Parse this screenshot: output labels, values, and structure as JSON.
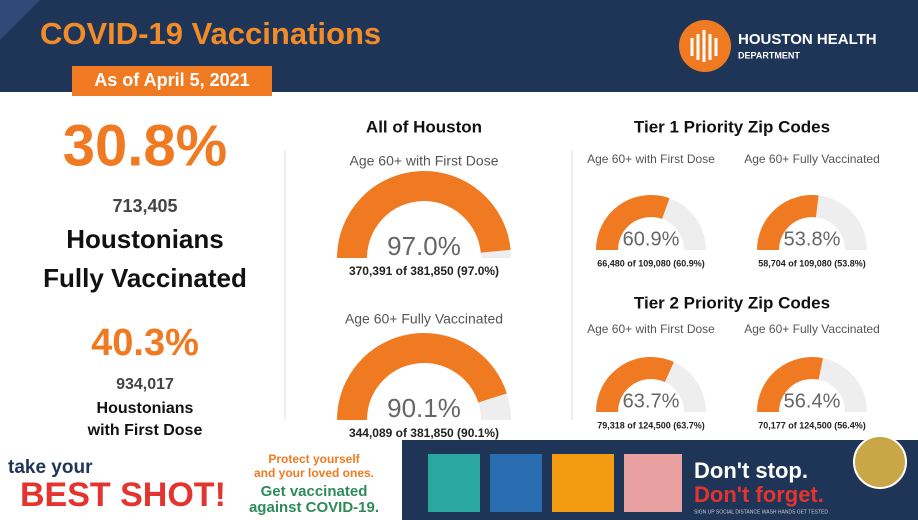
{
  "header": {
    "title": "COVID-19 Vaccinations",
    "date": "As of April 5, 2021",
    "logo_line1": "HOUSTON HEALTH",
    "logo_line2": "DEPARTMENT"
  },
  "summary": {
    "fully": {
      "percent": "30.8%",
      "count": "713,405",
      "label": [
        "Houstonians",
        "Fully Vaccinated"
      ]
    },
    "first": {
      "percent": "40.3%",
      "count": "934,017",
      "label": [
        "Houstonians",
        "with First Dose"
      ]
    }
  },
  "gauges": {
    "range": [
      0,
      100
    ],
    "groups": [
      {
        "title": "All of Houston",
        "items": [
          {
            "label": "Age 60+ with First Dose",
            "value": 97.0,
            "value_label": "97.0%",
            "detail": "370,391 of 381,850  (97.0%)"
          },
          {
            "label": "Age 60+ Fully Vaccinated",
            "value": 90.1,
            "value_label": "90.1%",
            "detail": "344,089 of 381,850  (90.1%)"
          }
        ]
      },
      {
        "title": "Tier 1 Priority Zip Codes",
        "items": [
          {
            "label": "Age 60+ with First Dose",
            "value": 60.9,
            "value_label": "60.9%",
            "detail": "66,480 of 109,080 (60.9%)"
          },
          {
            "label": "Age 60+ Fully Vaccinated",
            "value": 53.8,
            "value_label": "53.8%",
            "detail": "58,704 of 109,080 (53.8%)"
          }
        ]
      },
      {
        "title": "Tier 2 Priority Zip Codes",
        "items": [
          {
            "label": "Age 60+ with First Dose",
            "value": 63.7,
            "value_label": "63.7%",
            "detail": "79,318 of 124,500 (63.7%)"
          },
          {
            "label": "Age 60+ Fully Vaccinated",
            "value": 56.4,
            "value_label": "56.4%",
            "detail": "70,177 of 124,500 (56.4%)"
          }
        ]
      }
    ]
  },
  "footer": {
    "take": "take your",
    "best": "BEST SHOT!",
    "protect": [
      "Protect yourself",
      "and your loved ones."
    ],
    "get": [
      "Get vaccinated",
      "against COVID-19."
    ],
    "dont_stop": "Don't stop.",
    "dont_forget": "Don't forget.",
    "small": "SIGN UP  SOCIAL DISTANCE  WASH HANDS  GET TESTED"
  }
}
